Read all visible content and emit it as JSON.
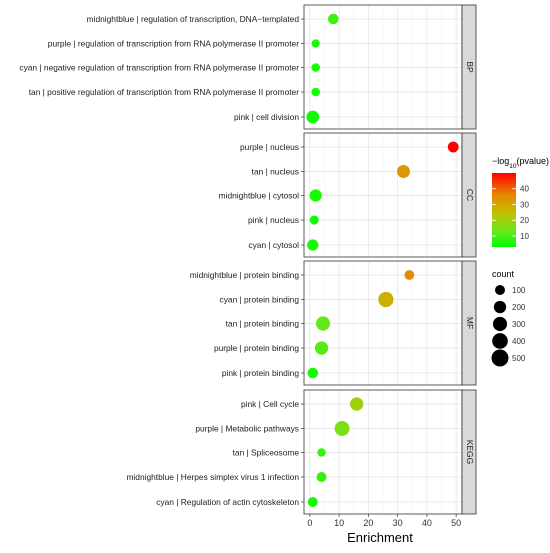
{
  "chart_data": {
    "type": "scatter",
    "xlabel": "Enrichment",
    "xlim": [
      -2,
      52
    ],
    "xticks": [
      "0",
      "10",
      "20",
      "30",
      "40",
      "50"
    ],
    "grid": true,
    "legend_placement": "right",
    "facets": [
      {
        "label": "BP",
        "terms": [
          {
            "term": "midnightblue | regulation of transcription, DNA−templated",
            "enrichment": 8,
            "count": 120,
            "neg_log10_p": 9
          },
          {
            "term": "purple | regulation of transcription from RNA polymerase II promoter",
            "enrichment": 2,
            "count": 45,
            "neg_log10_p": 5
          },
          {
            "term": "cyan | negative regulation of transcription from RNA polymerase II promoter",
            "enrichment": 2,
            "count": 55,
            "neg_log10_p": 5
          },
          {
            "term": "tan | positive regulation of transcription from RNA polymerase II promoter",
            "enrichment": 2,
            "count": 55,
            "neg_log10_p": 5
          },
          {
            "term": "pink | cell division",
            "enrichment": 1,
            "count": 220,
            "neg_log10_p": 5
          }
        ]
      },
      {
        "label": "CC",
        "terms": [
          {
            "term": "purple | nucleus",
            "enrichment": 49,
            "count": 130,
            "neg_log10_p": 50
          },
          {
            "term": "tan | nucleus",
            "enrichment": 32,
            "count": 230,
            "neg_log10_p": 33
          },
          {
            "term": "midnightblue | cytosol",
            "enrichment": 2,
            "count": 190,
            "neg_log10_p": 5
          },
          {
            "term": "pink | nucleus",
            "enrichment": 1.5,
            "count": 70,
            "neg_log10_p": 5
          },
          {
            "term": "cyan | cytosol",
            "enrichment": 1,
            "count": 150,
            "neg_log10_p": 5
          }
        ]
      },
      {
        "label": "MF",
        "terms": [
          {
            "term": "midnightblue | protein binding",
            "enrichment": 34,
            "count": 90,
            "neg_log10_p": 36
          },
          {
            "term": "cyan | protein binding",
            "enrichment": 26,
            "count": 370,
            "neg_log10_p": 28
          },
          {
            "term": "tan | protein binding",
            "enrichment": 4.5,
            "count": 300,
            "neg_log10_p": 12
          },
          {
            "term": "purple | protein binding",
            "enrichment": 4,
            "count": 250,
            "neg_log10_p": 11
          },
          {
            "term": "pink | protein binding",
            "enrichment": 1,
            "count": 120,
            "neg_log10_p": 5
          }
        ]
      },
      {
        "label": "KEGG",
        "terms": [
          {
            "term": "pink | Cell cycle",
            "enrichment": 16,
            "count": 250,
            "neg_log10_p": 20
          },
          {
            "term": "purple | Metabolic pathways",
            "enrichment": 11,
            "count": 350,
            "neg_log10_p": 15
          },
          {
            "term": "tan | Spliceosome",
            "enrichment": 4,
            "count": 50,
            "neg_log10_p": 8
          },
          {
            "term": "midnightblue | Herpes simplex virus 1 infection",
            "enrichment": 4,
            "count": 100,
            "neg_log10_p": 8
          },
          {
            "term": "cyan | Regulation of actin cytoskeleton",
            "enrichment": 1,
            "count": 100,
            "neg_log10_p": 5
          }
        ]
      }
    ],
    "color_legend": {
      "title_prefix": "−log",
      "title_subscript": "10",
      "title_suffix": "(pvalue)",
      "domain": [
        3,
        50
      ],
      "ticks": [
        "40",
        "30",
        "20",
        "10"
      ],
      "gradient": [
        "#ff0000",
        "#e58a00",
        "#bfc300",
        "#66e81a",
        "#00ff00"
      ]
    },
    "size_legend": {
      "title": "count",
      "values": [
        100,
        200,
        300,
        400,
        500
      ],
      "labels": [
        "100",
        "200",
        "300",
        "400",
        "500"
      ]
    }
  }
}
